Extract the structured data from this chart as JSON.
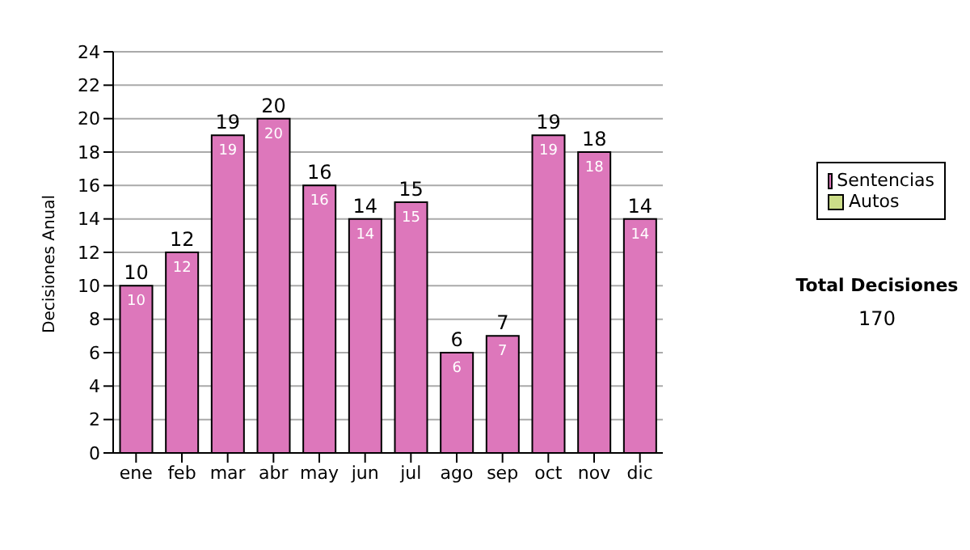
{
  "chart_data": {
    "type": "bar",
    "ylabel": "Decisiones Anual",
    "categories": [
      "ene",
      "feb",
      "mar",
      "abr",
      "may",
      "jun",
      "jul",
      "ago",
      "sep",
      "oct",
      "nov",
      "dic"
    ],
    "series": [
      {
        "name": "Sentencias",
        "color": "#dd77bb",
        "values": [
          10,
          12,
          19,
          20,
          16,
          14,
          15,
          6,
          7,
          19,
          18,
          14
        ],
        "value_labels": [
          "10",
          "12",
          "19",
          "20",
          "16",
          "14",
          "15",
          "6",
          "7",
          "19",
          "18",
          "14"
        ]
      },
      {
        "name": "Autos",
        "color": "#ccdd88",
        "values": [
          0,
          0,
          0,
          0,
          0,
          0,
          0,
          0,
          0,
          0,
          0,
          0
        ],
        "value_labels": [
          null,
          null,
          null,
          null,
          null,
          null,
          null,
          null,
          null,
          null,
          null,
          null
        ]
      }
    ],
    "stacked": true,
    "totals": [
      "10",
      "12",
      "19",
      "20",
      "16",
      "14",
      "15",
      "6",
      "7",
      "19",
      "18",
      "14"
    ],
    "ylim": [
      0,
      24
    ],
    "yticks": [
      0,
      2,
      4,
      6,
      8,
      10,
      12,
      14,
      16,
      18,
      20,
      22,
      24
    ],
    "grid": "y",
    "legend": "right",
    "annotations": [
      "Total Decisiones",
      "170"
    ]
  }
}
